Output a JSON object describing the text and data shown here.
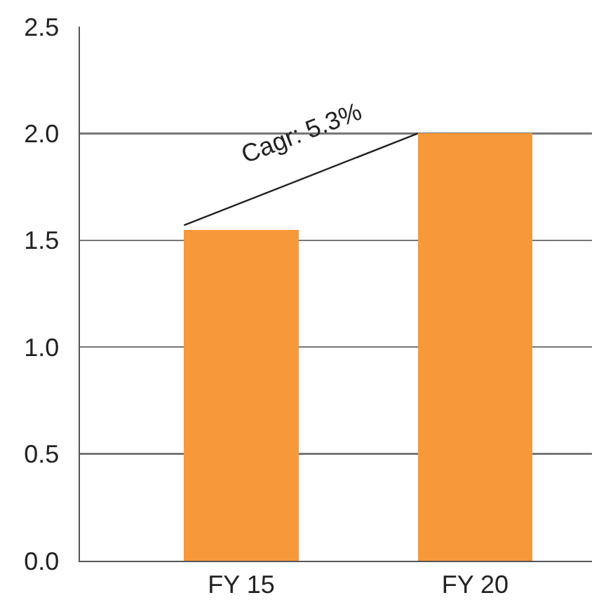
{
  "chart_data": {
    "type": "bar",
    "categories": [
      "FY 15",
      "FY 20"
    ],
    "series": [
      {
        "color": "#f7993b",
        "values": [
          1.55,
          2.0
        ]
      },
      {
        "type": "line",
        "color": "#222222",
        "values": [
          1.57,
          2.0
        ]
      }
    ],
    "ylim": [
      0,
      2.5
    ],
    "yticks": [
      {
        "value": 0,
        "label": "0.0"
      },
      {
        "value": 0.5,
        "label": "0.5"
      },
      {
        "value": 1,
        "label": "1.0"
      },
      {
        "value": 1.5,
        "label": "1.5"
      },
      {
        "value": 2,
        "label": "2.0"
      },
      {
        "value": 2.5,
        "label": "2.5"
      }
    ],
    "grid": "y",
    "marker": "none",
    "annotations": [
      "Cagr: 5.3%"
    ]
  }
}
